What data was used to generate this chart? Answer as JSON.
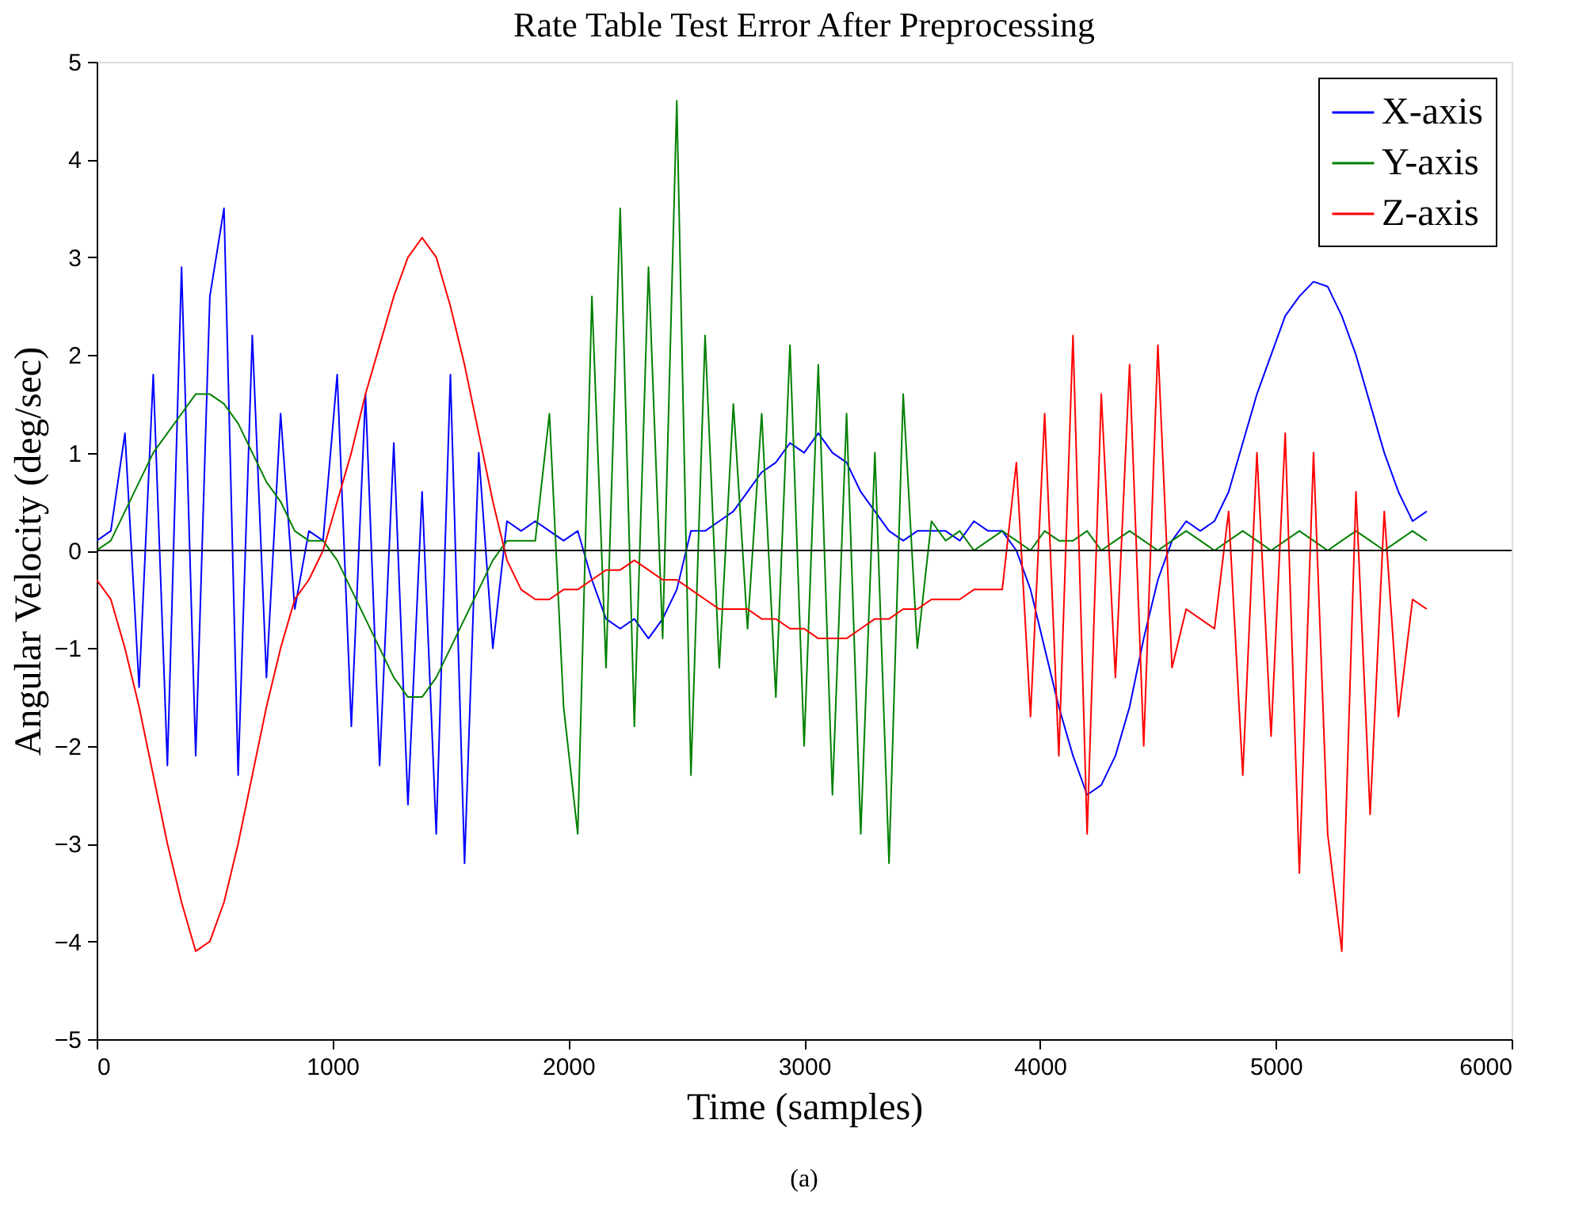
{
  "chart_data": {
    "type": "line",
    "title": "Rate Table Test Error After Preprocessing",
    "xlabel": "Time (samples)",
    "ylabel": "Angular Velocity (deg/sec)",
    "x": [
      0,
      60,
      120,
      180,
      240,
      300,
      360,
      420,
      480,
      540,
      600,
      660,
      720,
      780,
      840,
      900,
      960,
      1020,
      1080,
      1140,
      1200,
      1260,
      1320,
      1380,
      1440,
      1500,
      1560,
      1620,
      1680,
      1740,
      1800,
      1860,
      1920,
      1980,
      2040,
      2100,
      2160,
      2220,
      2280,
      2340,
      2400,
      2460,
      2520,
      2580,
      2640,
      2700,
      2760,
      2820,
      2880,
      2940,
      3000,
      3060,
      3120,
      3180,
      3240,
      3300,
      3360,
      3420,
      3480,
      3540,
      3600,
      3660,
      3720,
      3780,
      3840,
      3900,
      3960,
      4020,
      4080,
      4140,
      4200,
      4260,
      4320,
      4380,
      4440,
      4500,
      4560,
      4620,
      4680,
      4740,
      4800,
      4860,
      4920,
      4980,
      5040,
      5100,
      5160,
      5220,
      5280,
      5340,
      5400,
      5460,
      5520,
      5580,
      5640
    ],
    "series": [
      {
        "name": "X-axis",
        "color": "#0000ff",
        "values": [
          0.1,
          0.2,
          1.2,
          -1.4,
          1.8,
          -2.2,
          2.9,
          -2.1,
          2.6,
          3.5,
          -2.3,
          2.2,
          -1.3,
          1.4,
          -0.6,
          0.2,
          0.1,
          1.8,
          -1.8,
          1.6,
          -2.2,
          1.1,
          -2.6,
          0.6,
          -2.9,
          1.8,
          -3.2,
          1.0,
          -1.0,
          0.3,
          0.2,
          0.3,
          0.2,
          0.1,
          0.2,
          -0.3,
          -0.7,
          -0.8,
          -0.7,
          -0.9,
          -0.7,
          -0.4,
          0.2,
          0.2,
          0.3,
          0.4,
          0.6,
          0.8,
          0.9,
          1.1,
          1.0,
          1.2,
          1.0,
          0.9,
          0.6,
          0.4,
          0.2,
          0.1,
          0.2,
          0.2,
          0.2,
          0.1,
          0.3,
          0.2,
          0.2,
          0.0,
          -0.4,
          -1.0,
          -1.6,
          -2.1,
          -2.5,
          -2.4,
          -2.1,
          -1.6,
          -0.9,
          -0.3,
          0.1,
          0.3,
          0.2,
          0.3,
          0.6,
          1.1,
          1.6,
          2.0,
          2.4,
          2.6,
          2.75,
          2.7,
          2.4,
          2.0,
          1.5,
          1.0,
          0.6,
          0.3,
          0.4
        ]
      },
      {
        "name": "Y-axis",
        "color": "#008000",
        "values": [
          0.0,
          0.1,
          0.4,
          0.7,
          1.0,
          1.2,
          1.4,
          1.6,
          1.6,
          1.5,
          1.3,
          1.0,
          0.7,
          0.5,
          0.2,
          0.1,
          0.1,
          -0.1,
          -0.4,
          -0.7,
          -1.0,
          -1.3,
          -1.5,
          -1.5,
          -1.3,
          -1.0,
          -0.7,
          -0.4,
          -0.1,
          0.1,
          0.1,
          0.1,
          1.4,
          -1.6,
          -2.9,
          2.6,
          -1.2,
          3.5,
          -1.8,
          2.9,
          -0.9,
          4.6,
          -2.3,
          2.2,
          -1.2,
          1.5,
          -0.8,
          1.4,
          -1.5,
          2.1,
          -2.0,
          1.9,
          -2.5,
          1.4,
          -2.9,
          1.0,
          -3.2,
          1.6,
          -1.0,
          0.3,
          0.1,
          0.2,
          0.0,
          0.1,
          0.2,
          0.1,
          0.0,
          0.2,
          0.1,
          0.1,
          0.2,
          0.0,
          0.1,
          0.2,
          0.1,
          0.0,
          0.1,
          0.2,
          0.1,
          0.0,
          0.1,
          0.2,
          0.1,
          0.0,
          0.1,
          0.2,
          0.1,
          0.0,
          0.1,
          0.2,
          0.1,
          0.0,
          0.1,
          0.2,
          0.1
        ]
      },
      {
        "name": "Z-axis",
        "color": "#ff0000",
        "values": [
          -0.3,
          -0.5,
          -1.0,
          -1.6,
          -2.3,
          -3.0,
          -3.6,
          -4.1,
          -4.0,
          -3.6,
          -3.0,
          -2.3,
          -1.6,
          -1.0,
          -0.5,
          -0.3,
          0.0,
          0.5,
          1.0,
          1.6,
          2.1,
          2.6,
          3.0,
          3.2,
          3.0,
          2.5,
          1.9,
          1.2,
          0.5,
          -0.1,
          -0.4,
          -0.5,
          -0.5,
          -0.4,
          -0.4,
          -0.3,
          -0.2,
          -0.2,
          -0.1,
          -0.2,
          -0.3,
          -0.3,
          -0.4,
          -0.5,
          -0.6,
          -0.6,
          -0.6,
          -0.7,
          -0.7,
          -0.8,
          -0.8,
          -0.9,
          -0.9,
          -0.9,
          -0.8,
          -0.7,
          -0.7,
          -0.6,
          -0.6,
          -0.5,
          -0.5,
          -0.5,
          -0.4,
          -0.4,
          -0.4,
          0.9,
          -1.7,
          1.4,
          -2.1,
          2.2,
          -2.9,
          1.6,
          -1.3,
          1.9,
          -2.0,
          2.1,
          -1.2,
          -0.6,
          -0.7,
          -0.8,
          0.4,
          -2.3,
          1.0,
          -1.9,
          1.2,
          -3.3,
          1.0,
          -2.9,
          -4.1,
          0.6,
          -2.7,
          0.4,
          -1.7,
          -0.5,
          -0.6
        ]
      }
    ],
    "xlim": [
      0,
      6000
    ],
    "xticks": [
      0,
      1000,
      2000,
      3000,
      4000,
      5000,
      6000
    ],
    "ylim": [
      -5,
      5
    ],
    "yticks": [
      -5,
      -4,
      -3,
      -2,
      -1,
      0,
      1,
      2,
      3,
      4,
      5
    ],
    "ref_lines": [
      {
        "axis": "y",
        "value": 0,
        "color": "#000000"
      }
    ],
    "legend": "top right",
    "grid": false,
    "annotations": [
      "(a)"
    ]
  }
}
